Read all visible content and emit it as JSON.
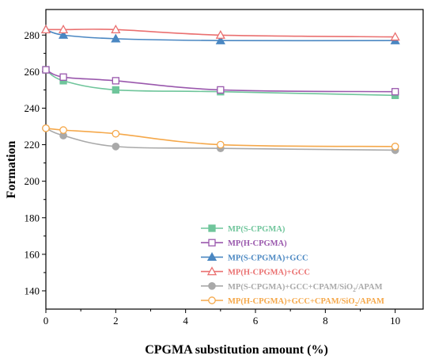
{
  "chart_data": {
    "type": "line",
    "title": "",
    "xlabel": "CPGMA substitution amount (%)",
    "ylabel": "Formation",
    "xlim": [
      0,
      10.8
    ],
    "ylim": [
      130,
      294
    ],
    "x_ticks": [
      "0",
      "2",
      "4",
      "6",
      "8",
      "10"
    ],
    "y_ticks": [
      "140",
      "160",
      "180",
      "200",
      "220",
      "240",
      "260",
      "280"
    ],
    "grid": false,
    "legend_position": "bottom-right",
    "series": [
      {
        "name": "MP(S-CPGMA)",
        "legend_text": {
          "main": "MP(S-CPGMA)",
          "sub": "",
          "tail": ""
        },
        "color": "#6fc59b",
        "marker": "square",
        "filled": true,
        "x": [
          0,
          0.5,
          2,
          5,
          10
        ],
        "y": [
          261,
          255,
          250,
          249,
          247
        ]
      },
      {
        "name": "MP(H-CPGMA)",
        "legend_text": {
          "main": "MP(H-CPGMA)",
          "sub": "",
          "tail": ""
        },
        "color": "#9a58ad",
        "marker": "square",
        "filled": false,
        "x": [
          0,
          0.5,
          2,
          5,
          10
        ],
        "y": [
          261,
          257,
          255,
          250,
          249
        ]
      },
      {
        "name": "MP(S-CPGMA)+GCC",
        "legend_text": {
          "main": "MP(S-CPGMA)+GCC",
          "sub": "",
          "tail": ""
        },
        "color": "#4a87c2",
        "marker": "triangle",
        "filled": true,
        "x": [
          0,
          0.5,
          2,
          5,
          10
        ],
        "y": [
          283,
          280,
          278,
          277,
          277
        ]
      },
      {
        "name": "MP(H-CPGMA)+GCC",
        "legend_text": {
          "main": "MP(H-CPGMA)+GCC",
          "sub": "",
          "tail": ""
        },
        "color": "#ea7070",
        "marker": "triangle",
        "filled": false,
        "x": [
          0,
          0.5,
          2,
          5,
          10
        ],
        "y": [
          283,
          283,
          283,
          280,
          279
        ]
      },
      {
        "name": "MP(S-CPGMA)+GCC+CPAM/SiO2/APAM",
        "legend_text": {
          "main": "MP(S-CPGMA)+GCC+CPAM/SiO",
          "sub": "2",
          "tail": "/APAM"
        },
        "color": "#a9a9a9",
        "marker": "circle",
        "filled": true,
        "x": [
          0,
          0.5,
          2,
          5,
          10
        ],
        "y": [
          229,
          225,
          219,
          218,
          217
        ]
      },
      {
        "name": "MP(H-CPGMA)+GCC+CPAM/SiO2/APAM",
        "legend_text": {
          "main": "MP(H-CPGMA)+GCC+CPAM/SiO",
          "sub": "2",
          "tail": "/APAM"
        },
        "color": "#f5a84a",
        "marker": "circle",
        "filled": false,
        "x": [
          0,
          0.5,
          2,
          5,
          10
        ],
        "y": [
          229,
          228,
          226,
          220,
          219
        ]
      }
    ]
  }
}
